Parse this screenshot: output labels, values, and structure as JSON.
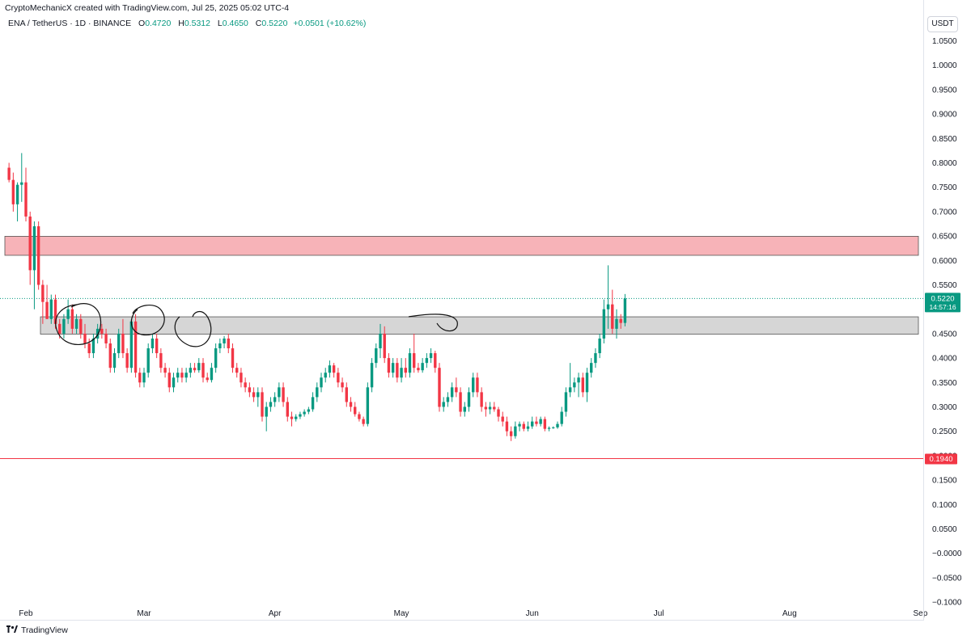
{
  "header": {
    "credit": "CryptoMechanicX created with TradingView.com, Jul 25, 2025 05:02 UTC-4",
    "symbol": "ENA / TetherUS · 1D · BINANCE",
    "open_label": "O",
    "open": "0.4720",
    "high_label": "H",
    "high": "0.5312",
    "low_label": "L",
    "low": "0.4650",
    "close_label": "C",
    "close": "0.5220",
    "change": "+0.0501 (+10.62%)"
  },
  "axis_unit": "USDT",
  "footer": {
    "brand": "TradingView",
    "logo_icon": "tradingview-logo-icon"
  },
  "colors": {
    "up": "#089981",
    "down": "#f23645",
    "resistance_zone": "#f7b3b8",
    "support_zone": "#d6d6d6",
    "line": "#f23645"
  },
  "chart_data": {
    "type": "candlestick",
    "symbol": "ENA/USDT",
    "timeframe": "1D",
    "ylim": [
      -0.11,
      1.08
    ],
    "y_ticks": [
      "1.0500",
      "1.0000",
      "0.9500",
      "0.9000",
      "0.8500",
      "0.8000",
      "0.7500",
      "0.7000",
      "0.6500",
      "0.6000",
      "0.5500",
      "0.5000",
      "0.4500",
      "0.4000",
      "0.3500",
      "0.3000",
      "0.2500",
      "0.2000",
      "0.1500",
      "0.1000",
      "0.0500",
      "−0.0000",
      "−0.0500",
      "−0.1000"
    ],
    "x_ticks": [
      {
        "label": "Feb",
        "date": "2025-02-01"
      },
      {
        "label": "Mar",
        "date": "2025-03-01"
      },
      {
        "label": "Apr",
        "date": "2025-04-01"
      },
      {
        "label": "May",
        "date": "2025-05-01"
      },
      {
        "label": "Jun",
        "date": "2025-06-01"
      },
      {
        "label": "Jul",
        "date": "2025-07-01"
      },
      {
        "label": "Aug",
        "date": "2025-08-01"
      },
      {
        "label": "Sep",
        "date": "2025-09-01"
      }
    ],
    "start_date": "2025-01-28",
    "candles": [
      [
        0.79,
        0.8,
        0.76,
        0.765
      ],
      [
        0.765,
        0.78,
        0.7,
        0.715
      ],
      [
        0.715,
        0.76,
        0.68,
        0.755
      ],
      [
        0.755,
        0.82,
        0.72,
        0.76
      ],
      [
        0.76,
        0.79,
        0.68,
        0.69
      ],
      [
        0.69,
        0.7,
        0.55,
        0.58
      ],
      [
        0.58,
        0.68,
        0.5,
        0.67
      ],
      [
        0.67,
        0.68,
        0.54,
        0.55
      ],
      [
        0.55,
        0.56,
        0.47,
        0.515
      ],
      [
        0.515,
        0.55,
        0.48,
        0.48
      ],
      [
        0.48,
        0.53,
        0.47,
        0.52
      ],
      [
        0.52,
        0.53,
        0.46,
        0.47
      ],
      [
        0.47,
        0.48,
        0.44,
        0.45
      ],
      [
        0.45,
        0.49,
        0.44,
        0.48
      ],
      [
        0.48,
        0.52,
        0.47,
        0.5
      ],
      [
        0.5,
        0.51,
        0.45,
        0.46
      ],
      [
        0.46,
        0.49,
        0.45,
        0.48
      ],
      [
        0.48,
        0.49,
        0.44,
        0.45
      ],
      [
        0.45,
        0.47,
        0.42,
        0.43
      ],
      [
        0.43,
        0.44,
        0.4,
        0.41
      ],
      [
        0.41,
        0.45,
        0.4,
        0.44
      ],
      [
        0.44,
        0.47,
        0.43,
        0.46
      ],
      [
        0.46,
        0.47,
        0.44,
        0.45
      ],
      [
        0.45,
        0.46,
        0.42,
        0.43
      ],
      [
        0.43,
        0.44,
        0.37,
        0.38
      ],
      [
        0.38,
        0.42,
        0.37,
        0.41
      ],
      [
        0.41,
        0.46,
        0.4,
        0.45
      ],
      [
        0.45,
        0.48,
        0.4,
        0.41
      ],
      [
        0.41,
        0.42,
        0.37,
        0.38
      ],
      [
        0.38,
        0.48,
        0.37,
        0.475
      ],
      [
        0.475,
        0.49,
        0.36,
        0.37
      ],
      [
        0.37,
        0.38,
        0.34,
        0.35
      ],
      [
        0.35,
        0.38,
        0.34,
        0.37
      ],
      [
        0.37,
        0.43,
        0.36,
        0.42
      ],
      [
        0.42,
        0.45,
        0.41,
        0.44
      ],
      [
        0.44,
        0.45,
        0.4,
        0.41
      ],
      [
        0.41,
        0.42,
        0.37,
        0.38
      ],
      [
        0.38,
        0.39,
        0.36,
        0.37
      ],
      [
        0.37,
        0.38,
        0.33,
        0.34
      ],
      [
        0.34,
        0.37,
        0.33,
        0.36
      ],
      [
        0.36,
        0.38,
        0.35,
        0.37
      ],
      [
        0.37,
        0.38,
        0.35,
        0.36
      ],
      [
        0.36,
        0.38,
        0.35,
        0.37
      ],
      [
        0.37,
        0.39,
        0.36,
        0.38
      ],
      [
        0.38,
        0.39,
        0.37,
        0.375
      ],
      [
        0.375,
        0.4,
        0.37,
        0.39
      ],
      [
        0.39,
        0.4,
        0.35,
        0.36
      ],
      [
        0.36,
        0.37,
        0.35,
        0.355
      ],
      [
        0.355,
        0.39,
        0.35,
        0.38
      ],
      [
        0.38,
        0.43,
        0.37,
        0.42
      ],
      [
        0.42,
        0.44,
        0.41,
        0.43
      ],
      [
        0.43,
        0.445,
        0.42,
        0.44
      ],
      [
        0.44,
        0.45,
        0.41,
        0.42
      ],
      [
        0.42,
        0.43,
        0.37,
        0.38
      ],
      [
        0.38,
        0.39,
        0.36,
        0.37
      ],
      [
        0.37,
        0.38,
        0.34,
        0.35
      ],
      [
        0.35,
        0.36,
        0.33,
        0.34
      ],
      [
        0.34,
        0.35,
        0.32,
        0.33
      ],
      [
        0.33,
        0.34,
        0.31,
        0.32
      ],
      [
        0.32,
        0.34,
        0.3,
        0.33
      ],
      [
        0.33,
        0.34,
        0.27,
        0.28
      ],
      [
        0.28,
        0.31,
        0.25,
        0.3
      ],
      [
        0.3,
        0.32,
        0.29,
        0.31
      ],
      [
        0.31,
        0.33,
        0.3,
        0.32
      ],
      [
        0.32,
        0.35,
        0.31,
        0.34
      ],
      [
        0.34,
        0.35,
        0.3,
        0.31
      ],
      [
        0.31,
        0.32,
        0.27,
        0.28
      ],
      [
        0.28,
        0.29,
        0.26,
        0.275
      ],
      [
        0.275,
        0.285,
        0.27,
        0.28
      ],
      [
        0.28,
        0.29,
        0.275,
        0.285
      ],
      [
        0.285,
        0.295,
        0.28,
        0.29
      ],
      [
        0.29,
        0.3,
        0.285,
        0.295
      ],
      [
        0.295,
        0.33,
        0.29,
        0.32
      ],
      [
        0.32,
        0.35,
        0.31,
        0.34
      ],
      [
        0.34,
        0.37,
        0.33,
        0.36
      ],
      [
        0.36,
        0.38,
        0.35,
        0.37
      ],
      [
        0.37,
        0.395,
        0.36,
        0.385
      ],
      [
        0.385,
        0.39,
        0.36,
        0.37
      ],
      [
        0.37,
        0.38,
        0.34,
        0.35
      ],
      [
        0.35,
        0.36,
        0.33,
        0.34
      ],
      [
        0.34,
        0.35,
        0.3,
        0.31
      ],
      [
        0.31,
        0.32,
        0.29,
        0.3
      ],
      [
        0.3,
        0.31,
        0.28,
        0.285
      ],
      [
        0.285,
        0.29,
        0.27,
        0.275
      ],
      [
        0.275,
        0.28,
        0.26,
        0.265
      ],
      [
        0.265,
        0.35,
        0.26,
        0.34
      ],
      [
        0.34,
        0.4,
        0.33,
        0.39
      ],
      [
        0.39,
        0.43,
        0.38,
        0.42
      ],
      [
        0.42,
        0.47,
        0.4,
        0.45
      ],
      [
        0.45,
        0.465,
        0.39,
        0.4
      ],
      [
        0.4,
        0.41,
        0.36,
        0.37
      ],
      [
        0.37,
        0.4,
        0.36,
        0.39
      ],
      [
        0.39,
        0.4,
        0.35,
        0.36
      ],
      [
        0.36,
        0.4,
        0.35,
        0.38
      ],
      [
        0.38,
        0.4,
        0.36,
        0.37
      ],
      [
        0.37,
        0.42,
        0.36,
        0.41
      ],
      [
        0.41,
        0.45,
        0.37,
        0.38
      ],
      [
        0.38,
        0.39,
        0.37,
        0.375
      ],
      [
        0.375,
        0.4,
        0.37,
        0.39
      ],
      [
        0.39,
        0.41,
        0.38,
        0.4
      ],
      [
        0.4,
        0.42,
        0.39,
        0.41
      ],
      [
        0.41,
        0.415,
        0.37,
        0.38
      ],
      [
        0.38,
        0.39,
        0.29,
        0.3
      ],
      [
        0.3,
        0.32,
        0.29,
        0.31
      ],
      [
        0.31,
        0.33,
        0.3,
        0.32
      ],
      [
        0.32,
        0.35,
        0.31,
        0.34
      ],
      [
        0.34,
        0.36,
        0.32,
        0.33
      ],
      [
        0.33,
        0.34,
        0.28,
        0.29
      ],
      [
        0.29,
        0.31,
        0.28,
        0.3
      ],
      [
        0.3,
        0.34,
        0.29,
        0.33
      ],
      [
        0.33,
        0.37,
        0.32,
        0.36
      ],
      [
        0.36,
        0.37,
        0.32,
        0.33
      ],
      [
        0.33,
        0.34,
        0.29,
        0.3
      ],
      [
        0.3,
        0.31,
        0.28,
        0.295
      ],
      [
        0.295,
        0.31,
        0.285,
        0.3
      ],
      [
        0.3,
        0.31,
        0.29,
        0.295
      ],
      [
        0.295,
        0.3,
        0.27,
        0.28
      ],
      [
        0.28,
        0.29,
        0.26,
        0.27
      ],
      [
        0.27,
        0.28,
        0.24,
        0.25
      ],
      [
        0.25,
        0.26,
        0.23,
        0.24
      ],
      [
        0.24,
        0.27,
        0.235,
        0.26
      ],
      [
        0.26,
        0.27,
        0.25,
        0.265
      ],
      [
        0.265,
        0.27,
        0.25,
        0.255
      ],
      [
        0.255,
        0.27,
        0.25,
        0.26
      ],
      [
        0.26,
        0.28,
        0.255,
        0.27
      ],
      [
        0.27,
        0.28,
        0.26,
        0.265
      ],
      [
        0.265,
        0.28,
        0.26,
        0.275
      ],
      [
        0.275,
        0.28,
        0.25,
        0.255
      ],
      [
        0.255,
        0.26,
        0.25,
        0.257
      ],
      [
        0.257,
        0.26,
        0.255,
        0.258
      ],
      [
        0.258,
        0.27,
        0.255,
        0.265
      ],
      [
        0.265,
        0.3,
        0.26,
        0.29
      ],
      [
        0.29,
        0.34,
        0.28,
        0.33
      ],
      [
        0.33,
        0.39,
        0.32,
        0.34
      ],
      [
        0.34,
        0.36,
        0.33,
        0.35
      ],
      [
        0.35,
        0.37,
        0.32,
        0.36
      ],
      [
        0.36,
        0.37,
        0.32,
        0.33
      ],
      [
        0.33,
        0.38,
        0.31,
        0.37
      ],
      [
        0.37,
        0.4,
        0.36,
        0.39
      ],
      [
        0.39,
        0.42,
        0.38,
        0.41
      ],
      [
        0.41,
        0.45,
        0.4,
        0.44
      ],
      [
        0.44,
        0.52,
        0.43,
        0.5
      ],
      [
        0.5,
        0.59,
        0.46,
        0.51
      ],
      [
        0.51,
        0.54,
        0.45,
        0.46
      ],
      [
        0.46,
        0.5,
        0.44,
        0.48
      ],
      [
        0.48,
        0.49,
        0.46,
        0.472
      ],
      [
        0.472,
        0.5312,
        0.465,
        0.522
      ]
    ],
    "zones": [
      {
        "name": "resistance",
        "from": 0.6105,
        "to": 0.6495,
        "color": "#f7b3b8"
      },
      {
        "name": "support",
        "from": 0.449,
        "to": 0.4845,
        "color": "#d6d6d6"
      }
    ],
    "horizontal_line": 0.194,
    "last_price": "0.5220",
    "countdown": "14:57:16",
    "line_label": "0.1940"
  }
}
